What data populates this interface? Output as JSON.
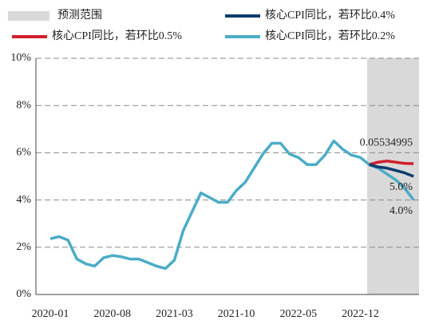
{
  "chart_data": {
    "type": "line",
    "categories": [
      "2020-01",
      null,
      null,
      null,
      null,
      null,
      null,
      "2020-08",
      null,
      null,
      null,
      null,
      null,
      null,
      "2021-03",
      null,
      null,
      null,
      null,
      null,
      null,
      "2021-10",
      null,
      null,
      null,
      null,
      null,
      null,
      "2022-05",
      null,
      null,
      null,
      null,
      null,
      null,
      "2022-12",
      null,
      null,
      null,
      null,
      null,
      null
    ],
    "forecast": {
      "name": "预测范围",
      "color": "#d9d9d9",
      "from": 36,
      "to": 41
    },
    "series": [
      {
        "name": "核心CPI同比，若环比0.4%",
        "color": "#0d3c6e",
        "values": [
          null,
          null,
          null,
          null,
          null,
          null,
          null,
          null,
          null,
          null,
          null,
          null,
          null,
          null,
          null,
          null,
          null,
          null,
          null,
          null,
          null,
          null,
          null,
          null,
          null,
          null,
          null,
          null,
          null,
          null,
          null,
          null,
          null,
          null,
          null,
          null,
          5.5,
          5.4,
          5.35,
          5.25,
          5.15,
          5.0
        ],
        "value_labels": [
          null,
          null,
          null,
          null,
          null,
          null,
          null,
          null,
          null,
          null,
          null,
          null,
          null,
          null,
          null,
          null,
          null,
          null,
          null,
          null,
          null,
          null,
          null,
          null,
          null,
          null,
          null,
          null,
          null,
          null,
          null,
          null,
          null,
          null,
          null,
          null,
          null,
          null,
          null,
          null,
          null,
          "5.0%"
        ]
      },
      {
        "name": "核心CPI同比，若环比0.5%",
        "color": "#d0202c",
        "values": [
          null,
          null,
          null,
          null,
          null,
          null,
          null,
          null,
          null,
          null,
          null,
          null,
          null,
          null,
          null,
          null,
          null,
          null,
          null,
          null,
          null,
          null,
          null,
          null,
          null,
          null,
          null,
          null,
          null,
          null,
          null,
          null,
          null,
          null,
          null,
          null,
          5.5,
          5.6,
          5.65,
          5.6,
          5.55,
          5.534995
        ],
        "value_labels": [
          null,
          null,
          null,
          null,
          null,
          null,
          null,
          null,
          null,
          null,
          null,
          null,
          null,
          null,
          null,
          null,
          null,
          null,
          null,
          null,
          null,
          null,
          null,
          null,
          null,
          null,
          null,
          null,
          null,
          null,
          null,
          null,
          null,
          null,
          null,
          null,
          null,
          null,
          null,
          null,
          null,
          "0.05534995"
        ]
      },
      {
        "name": "核心CPI同比，若环比0.2%",
        "color": "#4bacc6",
        "values": [
          2.36,
          2.45,
          2.3,
          1.5,
          1.3,
          1.2,
          1.55,
          1.65,
          1.6,
          1.5,
          1.5,
          1.35,
          1.2,
          1.1,
          1.45,
          2.7,
          3.5,
          4.3,
          4.1,
          3.9,
          3.9,
          4.4,
          4.75,
          5.35,
          5.95,
          6.4,
          6.4,
          5.95,
          5.8,
          5.5,
          5.5,
          5.9,
          6.5,
          6.15,
          5.9,
          5.8,
          5.5,
          5.35,
          5.1,
          4.85,
          4.5,
          4.0
        ],
        "value_labels": [
          null,
          null,
          null,
          null,
          null,
          null,
          null,
          null,
          null,
          null,
          null,
          null,
          null,
          null,
          null,
          null,
          null,
          null,
          null,
          null,
          null,
          null,
          null,
          null,
          null,
          null,
          null,
          null,
          null,
          null,
          null,
          null,
          null,
          null,
          null,
          null,
          null,
          null,
          null,
          null,
          null,
          "4.0%"
        ]
      }
    ],
    "ylim": [
      0,
      10
    ],
    "yticks": [
      {
        "value": 0,
        "label": "0%"
      },
      {
        "value": 2,
        "label": "2%"
      },
      {
        "value": 4,
        "label": "4%"
      },
      {
        "value": 6,
        "label": "6%"
      },
      {
        "value": 8,
        "label": "8%"
      },
      {
        "value": 10,
        "label": "10%"
      }
    ],
    "grid": true
  }
}
